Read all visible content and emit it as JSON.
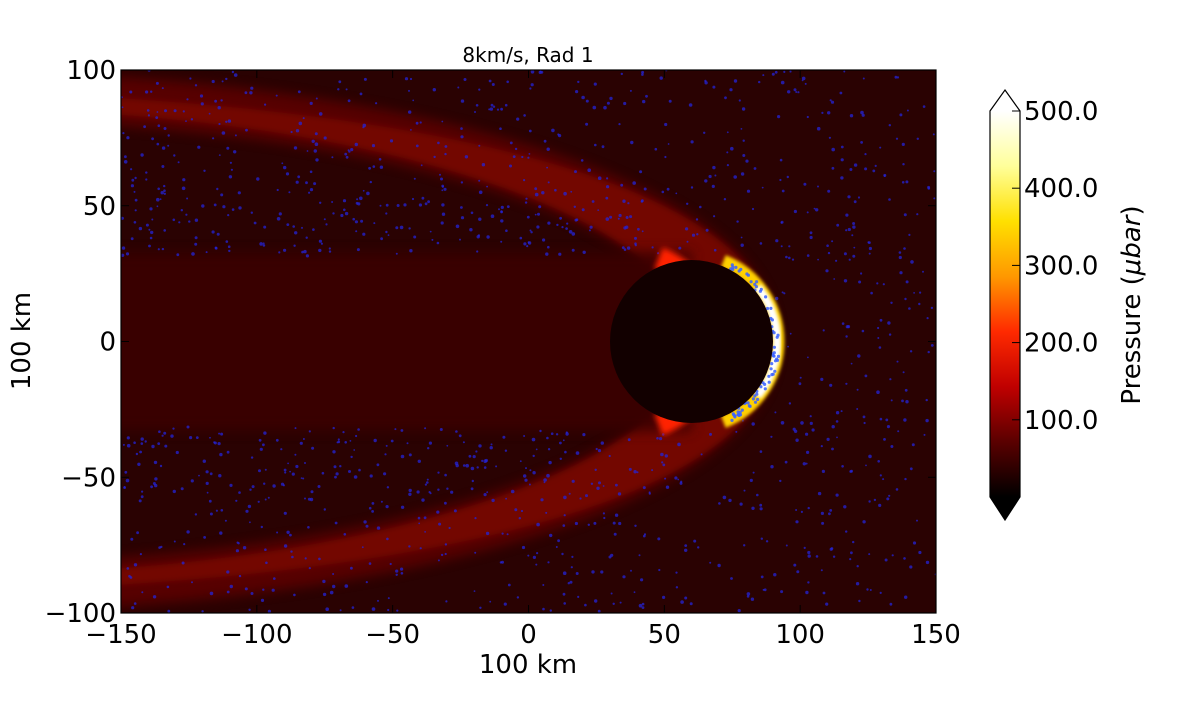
{
  "chart_data": {
    "type": "heatmap",
    "title": "8km/s, Rad 1",
    "xlabel": "100 km",
    "ylabel": "100 km",
    "xlim": [
      -150,
      150
    ],
    "ylim": [
      -100,
      100
    ],
    "x_ticks": [
      {
        "value": -150,
        "label": "−150"
      },
      {
        "value": -100,
        "label": "−100"
      },
      {
        "value": -50,
        "label": "−50"
      },
      {
        "value": 0,
        "label": "0"
      },
      {
        "value": 50,
        "label": "50"
      },
      {
        "value": 100,
        "label": "100"
      },
      {
        "value": 150,
        "label": "150"
      }
    ],
    "y_ticks": [
      {
        "value": 100,
        "label": "100"
      },
      {
        "value": 50,
        "label": "50"
      },
      {
        "value": 0,
        "label": "0"
      },
      {
        "value": -50,
        "label": "−50"
      },
      {
        "value": -100,
        "label": "−100"
      }
    ],
    "colorbar": {
      "label": "Pressure ($\\mu bar$)",
      "label_text": "Pressure (",
      "label_unit": "μbar",
      "label_close": ")",
      "range": [
        0,
        500
      ],
      "ticks": [
        {
          "value": 500,
          "label": "500.0"
        },
        {
          "value": 400,
          "label": "400.0"
        },
        {
          "value": 300,
          "label": "300.0"
        },
        {
          "value": 200,
          "label": "200.0"
        },
        {
          "value": 100,
          "label": "100.0"
        }
      ],
      "colormap": [
        "#000000",
        "#5a0000",
        "#c00000",
        "#ff2a00",
        "#ff9800",
        "#ffe000",
        "#ffff9a",
        "#ffffff"
      ],
      "extend": "both"
    },
    "obstacle": {
      "center_x": 60,
      "center_y": 0,
      "radius": 30,
      "color": "#120000"
    },
    "background_color": "#2a0202",
    "particle_color": "#2424d8"
  }
}
